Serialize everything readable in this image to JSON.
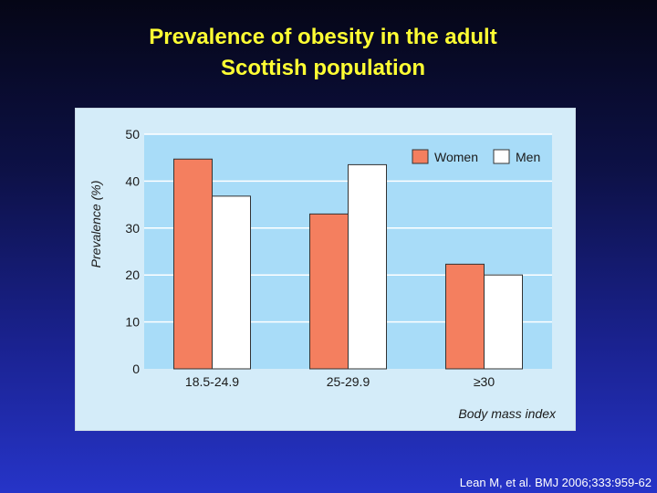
{
  "slide": {
    "title_line1": "Prevalence of obesity in the adult",
    "title_line2": "Scottish population",
    "citation": "Lean M, et al. BMJ 2006;333:959-62"
  },
  "colors": {
    "women": "#f47f5f",
    "men": "#ffffff",
    "plot_background": "#a8dcf8",
    "panel_background": "#d4ecf9",
    "gridline": "#ffffff"
  },
  "chart_data": {
    "type": "bar",
    "title": "",
    "xlabel": "Body mass index",
    "ylabel": "Prevalence (%)",
    "ylim": [
      0,
      50
    ],
    "yticks": [
      "0",
      "10",
      "20",
      "30",
      "40",
      "50"
    ],
    "categories": [
      "18.5-24.9",
      "25-29.9",
      "≥30"
    ],
    "series": [
      {
        "name": "Women",
        "values": [
          44.7,
          33,
          22.3
        ]
      },
      {
        "name": "Men",
        "values": [
          36.8,
          43.5,
          20
        ]
      }
    ],
    "grid": true,
    "legend_position": "top-right"
  }
}
